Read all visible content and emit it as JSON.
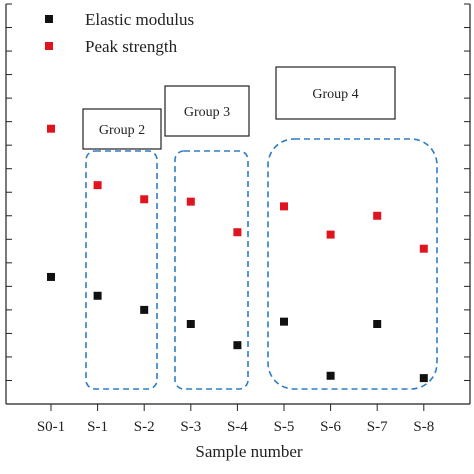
{
  "chart_data": {
    "type": "scatter",
    "xlabel": "Sample number",
    "categories": [
      "S0-1",
      "S-1",
      "S-2",
      "S-3",
      "S-4",
      "S-5",
      "S-6",
      "S-7",
      "S-8"
    ],
    "series": [
      {
        "name": "Elastic modulus",
        "color": "#111111",
        "marker": "square",
        "values": [
          5.4,
          4.6,
          4.0,
          3.4,
          2.5,
          3.5,
          1.2,
          3.4,
          1.1
        ]
      },
      {
        "name": "Peak strength",
        "color": "#e0141e",
        "marker": "square",
        "values": [
          11.7,
          9.3,
          8.7,
          8.6,
          7.3,
          8.4,
          7.2,
          8.0,
          6.6
        ]
      }
    ],
    "groups": [
      {
        "label": "Group 2",
        "members": [
          "S-1",
          "S-2"
        ]
      },
      {
        "label": "Group 3",
        "members": [
          "S-3",
          "S-4"
        ]
      },
      {
        "label": "Group 4",
        "members": [
          "S-5",
          "S-6",
          "S-7",
          "S-8"
        ]
      }
    ],
    "legend_position": "top-left",
    "grid": false,
    "ylim": [
      0,
      17
    ]
  }
}
